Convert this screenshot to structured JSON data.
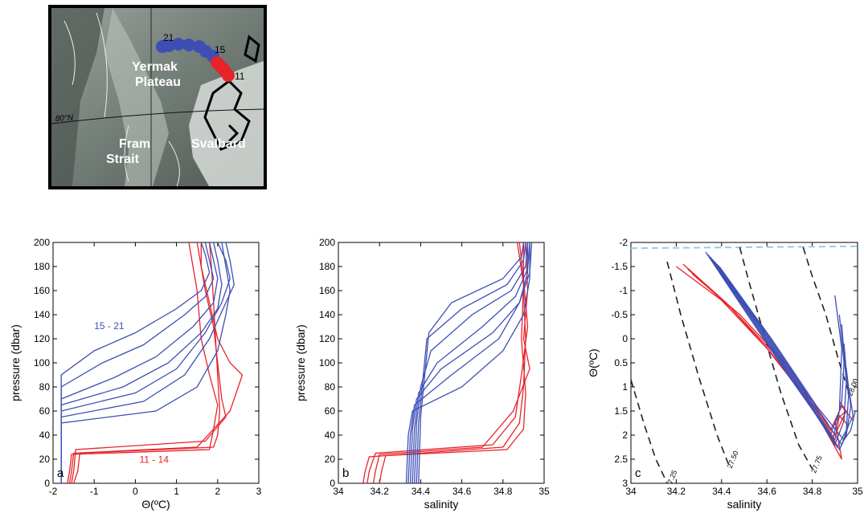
{
  "map": {
    "labels": [
      "Yermak",
      "Plateau",
      "Fram",
      "Strait",
      "Svalbard",
      "80°N"
    ],
    "station_labels": [
      "21",
      "15",
      "11"
    ],
    "colors": {
      "blue_stations": "#3d4fb5",
      "red_stations": "#e8232a"
    }
  },
  "chart_data": [
    {
      "type": "line",
      "panel_label": "a",
      "xlabel": "Θ(ºC)",
      "ylabel": "pressure (dbar)",
      "xlim": [
        -2,
        3
      ],
      "ylim": [
        200,
        0
      ],
      "xticks": [
        "-2",
        "-1",
        "0",
        "1",
        "2",
        "3"
      ],
      "yticks": [
        "0",
        "20",
        "40",
        "60",
        "80",
        "100",
        "120",
        "140",
        "160",
        "180",
        "200"
      ],
      "annotations": [
        {
          "text": "11 - 14",
          "color": "#e8232a"
        },
        {
          "text": "15 - 21",
          "color": "#3d4fb5"
        }
      ],
      "series_groups": [
        {
          "color": "#e8232a",
          "profiles": [
            {
              "x": [
                -1.5,
                -1.4,
                -1.35,
                1.9,
                2.0,
                2.05,
                2.0,
                1.95,
                1.9,
                1.85,
                1.8
              ],
              "y": [
                0,
                10,
                25,
                30,
                40,
                60,
                90,
                120,
                150,
                180,
                200
              ]
            },
            {
              "x": [
                -1.55,
                -1.5,
                -1.45,
                1.7,
                2.2,
                2.1,
                2.0,
                1.9,
                1.7,
                1.6,
                1.6
              ],
              "y": [
                0,
                10,
                28,
                35,
                55,
                70,
                100,
                130,
                160,
                180,
                200
              ]
            },
            {
              "x": [
                -1.6,
                -1.55,
                -1.5,
                1.5,
                2.3,
                2.6,
                2.3,
                2.0,
                1.8,
                1.6,
                1.5
              ],
              "y": [
                0,
                10,
                25,
                30,
                60,
                90,
                100,
                120,
                150,
                180,
                200
              ]
            },
            {
              "x": [
                -1.65,
                -1.6,
                -1.55,
                1.8,
                1.9,
                2.0,
                1.8,
                1.6,
                1.5,
                1.4,
                1.3
              ],
              "y": [
                0,
                10,
                24,
                28,
                45,
                65,
                90,
                120,
                160,
                180,
                200
              ]
            }
          ]
        },
        {
          "color": "#3d4fb5",
          "profiles": [
            {
              "x": [
                -1.8,
                -1.8,
                0.5,
                1.5,
                2.0,
                2.2,
                2.3,
                2.2,
                2.1
              ],
              "y": [
                0,
                50,
                60,
                80,
                110,
                140,
                160,
                180,
                200
              ]
            },
            {
              "x": [
                -1.8,
                -1.8,
                0.2,
                1.2,
                1.8,
                2.2,
                2.4,
                2.3,
                2.2
              ],
              "y": [
                0,
                55,
                68,
                90,
                120,
                150,
                165,
                185,
                200
              ]
            },
            {
              "x": [
                -1.8,
                -1.8,
                0.0,
                1.0,
                1.7,
                2.1,
                2.3,
                2.2,
                2.0
              ],
              "y": [
                0,
                60,
                75,
                95,
                125,
                150,
                170,
                185,
                200
              ]
            },
            {
              "x": [
                -1.8,
                -1.8,
                -0.3,
                0.8,
                1.6,
                2.0,
                2.1,
                2.0,
                1.9
              ],
              "y": [
                0,
                65,
                80,
                100,
                125,
                145,
                165,
                185,
                200
              ]
            },
            {
              "x": [
                -1.8,
                -1.8,
                -0.5,
                0.5,
                1.4,
                1.9,
                2.0,
                1.9,
                1.8
              ],
              "y": [
                0,
                70,
                88,
                105,
                130,
                150,
                170,
                185,
                200
              ]
            },
            {
              "x": [
                -1.8,
                -1.8,
                -0.8,
                0.2,
                1.2,
                1.7,
                1.9,
                1.8,
                1.7
              ],
              "y": [
                0,
                80,
                100,
                115,
                140,
                155,
                170,
                185,
                200
              ]
            },
            {
              "x": [
                -1.8,
                -1.8,
                -1.0,
                0.0,
                1.0,
                1.6,
                1.8,
                1.7,
                1.6
              ],
              "y": [
                0,
                90,
                110,
                125,
                145,
                160,
                175,
                190,
                200
              ]
            }
          ]
        }
      ]
    },
    {
      "type": "line",
      "panel_label": "b",
      "xlabel": "salinity",
      "ylabel": "pressure (dbar)",
      "xlim": [
        34,
        35
      ],
      "ylim": [
        200,
        0
      ],
      "xticks": [
        "34",
        "34.2",
        "34.4",
        "34.6",
        "34.8",
        "35"
      ],
      "yticks": [
        "0",
        "20",
        "40",
        "60",
        "80",
        "100",
        "120",
        "140",
        "160",
        "180",
        "200"
      ],
      "series_groups": [
        {
          "color": "#e8232a",
          "profiles": [
            {
              "x": [
                34.12,
                34.13,
                34.15,
                34.8,
                34.88,
                34.9,
                34.91,
                34.9,
                34.9
              ],
              "y": [
                0,
                10,
                22,
                30,
                50,
                80,
                120,
                160,
                200
              ]
            },
            {
              "x": [
                34.14,
                34.15,
                34.18,
                34.75,
                34.86,
                34.89,
                34.92,
                34.9,
                34.88
              ],
              "y": [
                0,
                10,
                25,
                32,
                55,
                90,
                130,
                170,
                200
              ]
            },
            {
              "x": [
                34.17,
                34.18,
                34.2,
                34.7,
                34.85,
                34.93,
                34.9,
                34.92,
                34.91
              ],
              "y": [
                0,
                10,
                24,
                30,
                60,
                95,
                120,
                160,
                200
              ]
            },
            {
              "x": [
                34.2,
                34.21,
                34.23,
                34.82,
                34.9,
                34.91,
                34.89,
                34.9,
                34.87
              ],
              "y": [
                0,
                10,
                23,
                28,
                45,
                75,
                120,
                165,
                200
              ]
            }
          ]
        },
        {
          "color": "#3d4fb5",
          "profiles": [
            {
              "x": [
                34.33,
                34.34,
                34.36,
                34.6,
                34.8,
                34.9,
                34.93,
                34.93
              ],
              "y": [
                0,
                40,
                60,
                80,
                110,
                140,
                170,
                200
              ]
            },
            {
              "x": [
                34.34,
                34.35,
                34.37,
                34.55,
                34.78,
                34.88,
                34.92,
                34.92
              ],
              "y": [
                0,
                40,
                65,
                90,
                120,
                150,
                175,
                200
              ]
            },
            {
              "x": [
                34.35,
                34.36,
                34.38,
                34.5,
                34.75,
                34.88,
                34.93,
                34.94
              ],
              "y": [
                0,
                45,
                70,
                95,
                125,
                150,
                175,
                200
              ]
            },
            {
              "x": [
                34.36,
                34.37,
                34.39,
                34.48,
                34.7,
                34.86,
                34.92,
                34.93
              ],
              "y": [
                0,
                45,
                75,
                100,
                130,
                155,
                178,
                200
              ]
            },
            {
              "x": [
                34.37,
                34.38,
                34.4,
                34.45,
                34.65,
                34.84,
                34.91,
                34.92
              ],
              "y": [
                0,
                50,
                80,
                110,
                140,
                160,
                180,
                200
              ]
            },
            {
              "x": [
                34.38,
                34.39,
                34.41,
                34.43,
                34.6,
                34.82,
                34.9,
                34.91
              ],
              "y": [
                0,
                50,
                85,
                120,
                145,
                165,
                185,
                200
              ]
            },
            {
              "x": [
                34.39,
                34.4,
                34.42,
                34.44,
                34.55,
                34.8,
                34.89,
                34.9
              ],
              "y": [
                0,
                55,
                90,
                125,
                150,
                170,
                188,
                200
              ]
            }
          ]
        }
      ]
    },
    {
      "type": "line",
      "panel_label": "c",
      "xlabel": "salinity",
      "ylabel": "Θ(ºC)",
      "xlim": [
        34,
        35
      ],
      "ylim": [
        -2,
        3
      ],
      "xticks": [
        "34",
        "34.2",
        "34.4",
        "34.6",
        "34.8",
        "35"
      ],
      "yticks": [
        "-2",
        "-1.5",
        "-1",
        "-0.5",
        "0",
        "0.5",
        "1",
        "1.5",
        "2",
        "2.5",
        "3"
      ],
      "isopycnals": [
        {
          "label": "27.25",
          "x": [
            34.0,
            34.06,
            34.11,
            34.16
          ],
          "y": [
            0.85,
            1.8,
            2.5,
            3.0
          ]
        },
        {
          "label": "27.50",
          "x": [
            34.16,
            34.22,
            34.3,
            34.38,
            34.43
          ],
          "y": [
            -1.6,
            -0.5,
            0.8,
            2.0,
            2.6
          ]
        },
        {
          "label": "27.75",
          "x": [
            34.48,
            34.52,
            34.58,
            34.66,
            34.74,
            34.8
          ],
          "y": [
            -1.9,
            -1.2,
            -0.2,
            1.1,
            2.2,
            2.7
          ]
        },
        {
          "label": "28.00",
          "x": [
            34.76,
            34.8,
            34.86,
            34.92,
            34.96
          ],
          "y": [
            -1.9,
            -1.3,
            -0.5,
            0.5,
            1.1
          ]
        }
      ],
      "freezing_line": {
        "color": "#8fd0e8",
        "x": [
          34,
          35
        ],
        "y": [
          -1.88,
          -1.92
        ]
      },
      "series_groups": [
        {
          "color": "#e8232a",
          "profiles": [
            {
              "x": [
                34.2,
                34.4,
                34.6,
                34.8,
                34.93,
                34.9,
                34.95,
                34.92
              ],
              "y": [
                -1.5,
                -0.8,
                0.2,
                1.4,
                2.5,
                1.7,
                1.5,
                1.8
              ]
            },
            {
              "x": [
                34.23,
                34.42,
                34.62,
                34.82,
                34.9,
                34.92,
                34.96
              ],
              "y": [
                -1.55,
                -0.75,
                0.3,
                1.5,
                2.1,
                1.6,
                1.8
              ]
            },
            {
              "x": [
                34.25,
                34.45,
                34.65,
                34.84,
                34.88,
                34.93,
                34.98
              ],
              "y": [
                -1.45,
                -0.6,
                0.4,
                1.6,
                1.9,
                1.4,
                1.7
              ]
            },
            {
              "x": [
                34.27,
                34.48,
                34.68,
                34.86,
                34.9,
                34.95,
                34.92
              ],
              "y": [
                -1.35,
                -0.5,
                0.5,
                1.7,
                2.0,
                1.5,
                1.3
              ]
            }
          ]
        },
        {
          "color": "#3d4fb5",
          "profiles": [
            {
              "x": [
                34.33,
                34.5,
                34.7,
                34.88,
                34.92,
                34.93,
                34.9
              ],
              "y": [
                -1.8,
                -0.6,
                0.8,
                2.0,
                1.5,
                0.2,
                -0.9
              ]
            },
            {
              "x": [
                34.34,
                34.52,
                34.72,
                34.89,
                34.93,
                34.94,
                34.92
              ],
              "y": [
                -1.75,
                -0.5,
                0.9,
                2.1,
                1.3,
                0.5,
                -0.5
              ]
            },
            {
              "x": [
                34.35,
                34.54,
                34.74,
                34.9,
                34.94,
                34.95,
                34.93
              ],
              "y": [
                -1.7,
                -0.4,
                1.0,
                2.2,
                1.7,
                0.9,
                -0.3
              ]
            },
            {
              "x": [
                34.36,
                34.56,
                34.76,
                34.91,
                34.95,
                34.96,
                34.94
              ],
              "y": [
                -1.65,
                -0.3,
                1.1,
                2.25,
                1.9,
                1.2,
                0.1
              ]
            },
            {
              "x": [
                34.37,
                34.58,
                34.78,
                34.92,
                34.95,
                34.97,
                34.95
              ],
              "y": [
                -1.6,
                -0.2,
                1.2,
                2.3,
                2.0,
                1.4,
                0.6
              ]
            },
            {
              "x": [
                34.38,
                34.6,
                34.8,
                34.93,
                34.96,
                34.98,
                34.96
              ],
              "y": [
                -1.55,
                -0.1,
                1.3,
                2.2,
                1.8,
                1.6,
                1.0
              ]
            },
            {
              "x": [
                34.39,
                34.62,
                34.82,
                34.94,
                34.97,
                34.99
              ],
              "y": [
                -1.5,
                0.0,
                1.4,
                2.1,
                1.9,
                1.5
              ]
            }
          ]
        }
      ]
    }
  ]
}
